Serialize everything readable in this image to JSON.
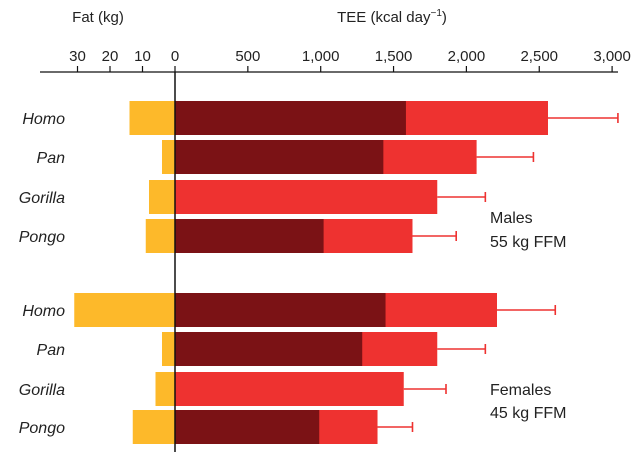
{
  "chart_data": {
    "type": "bar",
    "fat_axis": {
      "title": "Fat (kg)",
      "ticks": [
        30,
        20,
        10,
        0
      ],
      "tick_labels": [
        "30",
        "20",
        "10",
        "0"
      ]
    },
    "tee_axis": {
      "title_main": "TEE (kcal day",
      "title_sup": "−1",
      "title_end": ")",
      "ticks": [
        500,
        1000,
        1500,
        2000,
        2500,
        3000
      ],
      "tick_labels": [
        "500",
        "1,000",
        "1,500",
        "2,000",
        "2,500",
        "3,000"
      ],
      "xlim": [
        0,
        3000
      ]
    },
    "groups": [
      {
        "note_line1": "Males",
        "note_line2": "55 kg FFM",
        "rows": [
          {
            "label": "Homo",
            "fat": 14,
            "tee_dark": 1585,
            "tee_total": 2560,
            "err_high": 3040
          },
          {
            "label": "Pan",
            "fat": 4,
            "tee_dark": 1430,
            "tee_total": 2070,
            "err_high": 2460
          },
          {
            "label": "Gorilla",
            "fat": 8,
            "tee_dark": null,
            "tee_total": 1800,
            "err_high": 2130
          },
          {
            "label": "Pongo",
            "fat": 9,
            "tee_dark": 1020,
            "tee_total": 1630,
            "err_high": 1930
          }
        ]
      },
      {
        "note_line1": "Females",
        "note_line2": "45 kg FFM",
        "rows": [
          {
            "label": "Homo",
            "fat": 31,
            "tee_dark": 1445,
            "tee_total": 2210,
            "err_high": 2610
          },
          {
            "label": "Pan",
            "fat": 4,
            "tee_dark": 1285,
            "tee_total": 1800,
            "err_high": 2130
          },
          {
            "label": "Gorilla",
            "fat": 6,
            "tee_dark": null,
            "tee_total": 1570,
            "err_high": 1860
          },
          {
            "label": "Pongo",
            "fat": 13,
            "tee_dark": 990,
            "tee_total": 1390,
            "err_high": 1630
          }
        ]
      }
    ],
    "colors": {
      "fat": "#FDB92A",
      "tee_dark": "#7B1215",
      "tee_light": "#EE3230",
      "error_bar": "#EE3230",
      "axis": "#111111"
    },
    "grid": false
  }
}
